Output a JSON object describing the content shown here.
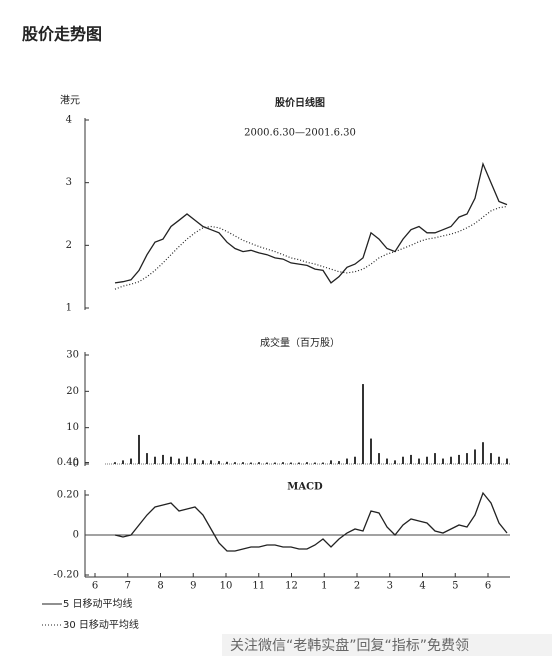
{
  "title": "股价走势图",
  "months": [
    "6",
    "7",
    "8",
    "9",
    "10",
    "11",
    "12",
    "1",
    "2",
    "3",
    "4",
    "5",
    "6"
  ],
  "watermark": "关注微信“老韩实盘”回复“指标”免费领",
  "chart_data": [
    {
      "type": "line",
      "title": "股价日线图",
      "subtitle": "2000.6.30—2001.6.30",
      "y_label": "港元",
      "ylim": [
        1,
        4
      ],
      "yticks": [
        1,
        2,
        3,
        4
      ],
      "series": [
        {
          "name": "5 日移动平均线",
          "color": "#222222",
          "dash": "solid",
          "values": [
            1.4,
            1.42,
            1.45,
            1.6,
            1.85,
            2.05,
            2.1,
            2.3,
            2.4,
            2.5,
            2.4,
            2.3,
            2.25,
            2.2,
            2.05,
            1.95,
            1.9,
            1.92,
            1.88,
            1.85,
            1.8,
            1.78,
            1.72,
            1.7,
            1.68,
            1.62,
            1.6,
            1.4,
            1.5,
            1.65,
            1.7,
            1.8,
            2.2,
            2.1,
            1.95,
            1.9,
            2.1,
            2.25,
            2.3,
            2.2,
            2.2,
            2.25,
            2.3,
            2.45,
            2.5,
            2.75,
            3.3,
            3.0,
            2.7,
            2.65
          ]
        },
        {
          "name": "30 日移动平均线",
          "color": "#222222",
          "dash": "dotted",
          "values": [
            1.3,
            1.35,
            1.38,
            1.42,
            1.5,
            1.6,
            1.72,
            1.85,
            1.98,
            2.1,
            2.2,
            2.28,
            2.3,
            2.28,
            2.22,
            2.15,
            2.08,
            2.03,
            1.98,
            1.94,
            1.9,
            1.85,
            1.8,
            1.77,
            1.73,
            1.7,
            1.66,
            1.62,
            1.58,
            1.56,
            1.58,
            1.62,
            1.7,
            1.8,
            1.86,
            1.9,
            1.95,
            2.0,
            2.06,
            2.1,
            2.12,
            2.15,
            2.18,
            2.22,
            2.28,
            2.35,
            2.45,
            2.55,
            2.6,
            2.62
          ]
        }
      ]
    },
    {
      "type": "bar",
      "title": "成交量（百万股）",
      "color": "#333333",
      "ylim": [
        0,
        30
      ],
      "yticks": [
        0,
        {
          "value": 0.4,
          "label": "0.40"
        },
        10,
        20,
        30
      ],
      "values": [
        0.5,
        1,
        1.5,
        8,
        3,
        2,
        2.5,
        2,
        1.5,
        2,
        1.5,
        1,
        1,
        0.8,
        0.6,
        0.5,
        0.5,
        0.4,
        0.5,
        0.4,
        0.4,
        0.5,
        0.4,
        0.4,
        0.5,
        0.4,
        0.4,
        1,
        0.8,
        1.5,
        2,
        22,
        7,
        3,
        1.5,
        1,
        2,
        2.5,
        1.5,
        2,
        3,
        1.5,
        2,
        2.5,
        3,
        4,
        6,
        3,
        2,
        1.5
      ]
    },
    {
      "type": "line",
      "title": "MACD",
      "ylim": [
        -0.2,
        0.2
      ],
      "yticks": [
        {
          "value": -0.2,
          "label": "-0.20"
        },
        0,
        {
          "value": 0.2,
          "label": "0.20"
        }
      ],
      "series": [
        {
          "color": "#222222",
          "dash": "solid",
          "values": [
            0,
            -0.01,
            0.0,
            0.05,
            0.1,
            0.14,
            0.15,
            0.16,
            0.12,
            0.13,
            0.14,
            0.1,
            0.03,
            -0.04,
            -0.08,
            -0.08,
            -0.07,
            -0.06,
            -0.06,
            -0.05,
            -0.05,
            -0.06,
            -0.06,
            -0.07,
            -0.07,
            -0.05,
            -0.02,
            -0.06,
            -0.02,
            0.01,
            0.03,
            0.02,
            0.12,
            0.11,
            0.04,
            0.0,
            0.05,
            0.08,
            0.07,
            0.06,
            0.02,
            0.01,
            0.03,
            0.05,
            0.04,
            0.1,
            0.21,
            0.16,
            0.06,
            0.01
          ]
        }
      ]
    }
  ]
}
